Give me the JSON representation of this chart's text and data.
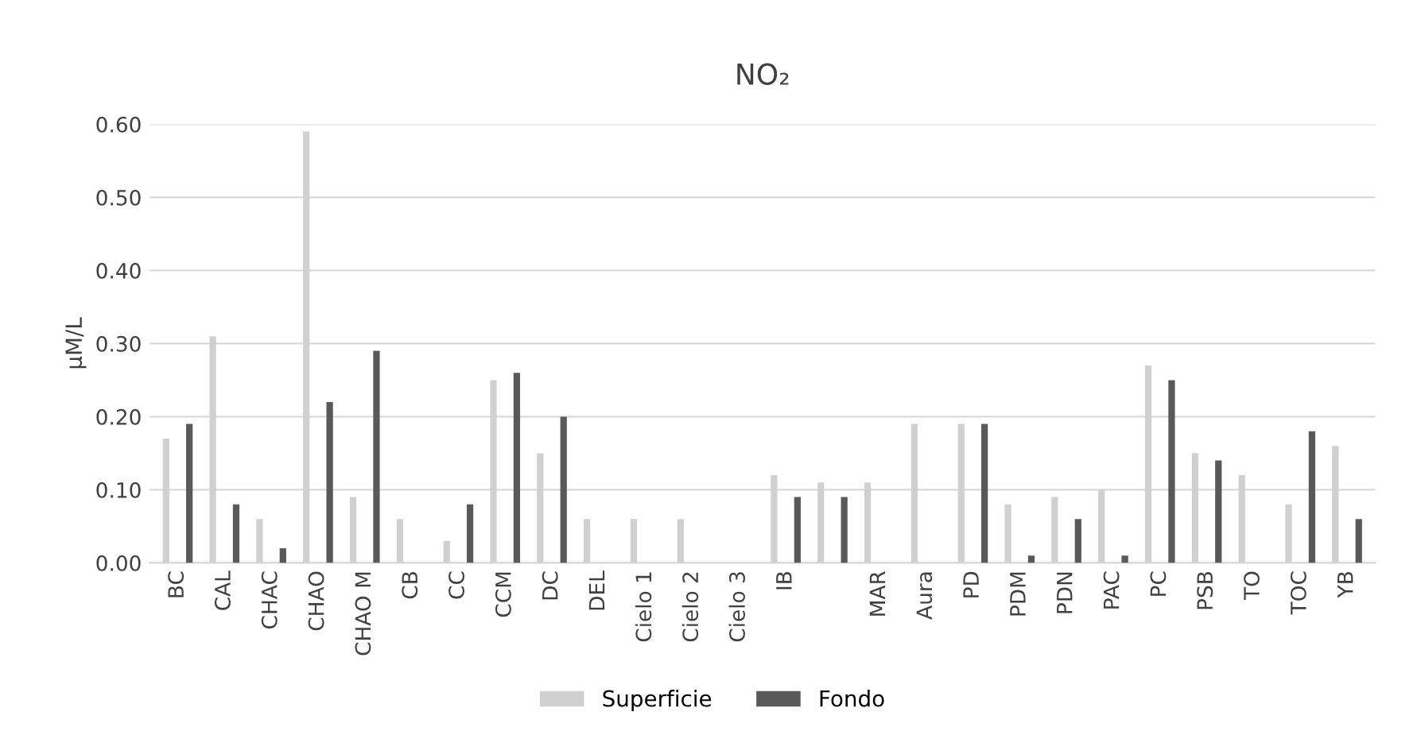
{
  "chart_data": {
    "type": "bar",
    "title": "NO₂",
    "ylabel": "µM/L",
    "categories": [
      "BC",
      "CAL",
      "CHAC",
      "CHAO",
      "CHAO M",
      "CB",
      "CC",
      "CCM",
      "DC",
      "DEL",
      "Cielo 1",
      "Cielo 2",
      "Cielo 3",
      "IB",
      null,
      "MAR",
      "Aura",
      "PD",
      "PDM",
      "PDN",
      "PAC",
      "PC",
      "PSB",
      "TO",
      "TOC",
      "YB"
    ],
    "series": [
      {
        "name": "Superficie",
        "color": "#d0d0d0",
        "values": [
          0.17,
          0.31,
          0.06,
          0.59,
          0.09,
          0.06,
          0.03,
          0.25,
          0.15,
          0.06,
          0.06,
          0.06,
          null,
          0.12,
          0.11,
          0.11,
          0.19,
          0.19,
          0.08,
          0.09,
          0.1,
          0.27,
          0.15,
          0.12,
          0.08,
          0.16
        ]
      },
      {
        "name": "Fondo",
        "color": "#595959",
        "values": [
          0.19,
          0.08,
          0.02,
          0.22,
          0.29,
          null,
          0.08,
          0.26,
          0.2,
          null,
          null,
          null,
          null,
          0.09,
          0.09,
          null,
          null,
          0.19,
          0.01,
          0.06,
          0.01,
          0.25,
          0.14,
          null,
          0.18,
          0.06
        ]
      }
    ],
    "ylim": [
      0,
      0.6
    ],
    "yticks": [
      {
        "value": 0,
        "label": "0.00"
      },
      {
        "value": 0.1,
        "label": "0.10"
      },
      {
        "value": 0.2,
        "label": "0.20"
      },
      {
        "value": 0.3,
        "label": "0.30"
      },
      {
        "value": 0.4,
        "label": "0.40"
      },
      {
        "value": 0.5,
        "label": "0.50"
      },
      {
        "value": 0.6,
        "label": "0.60"
      }
    ],
    "grid": "y",
    "legend": "bottom"
  }
}
